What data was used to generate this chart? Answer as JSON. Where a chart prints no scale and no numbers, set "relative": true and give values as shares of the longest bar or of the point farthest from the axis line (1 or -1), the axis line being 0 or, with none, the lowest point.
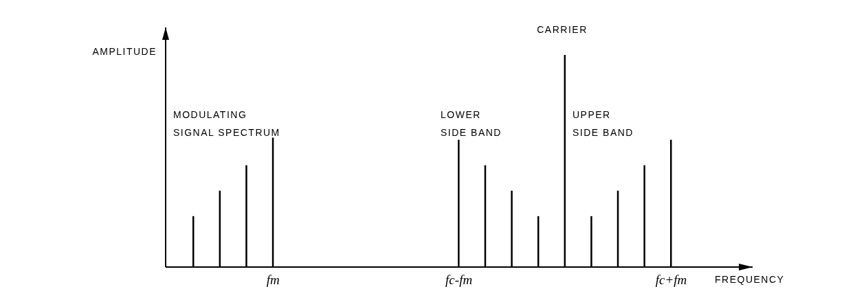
{
  "chart_data": {
    "type": "bar",
    "relative": true,
    "xlabel": "FREQUENCY",
    "ylabel": "AMPLITUDE",
    "color": "#000000",
    "categories": [
      null,
      null,
      null,
      "fm",
      null,
      null,
      null,
      null,
      null,
      null,
      "fc-fm",
      null,
      null,
      null,
      null,
      null,
      null,
      null,
      "fc+fm"
    ],
    "values": [
      0.24,
      0.36,
      0.48,
      0.61,
      null,
      null,
      null,
      null,
      null,
      null,
      0.6,
      0.48,
      0.36,
      0.24,
      1,
      0.24,
      0.36,
      0.48,
      0.6
    ],
    "annotations": [
      "MODULATING SIGNAL SPECTRUM",
      "LOWER SIDE BAND",
      "CARRIER",
      "UPPER SIDE BAND"
    ]
  }
}
